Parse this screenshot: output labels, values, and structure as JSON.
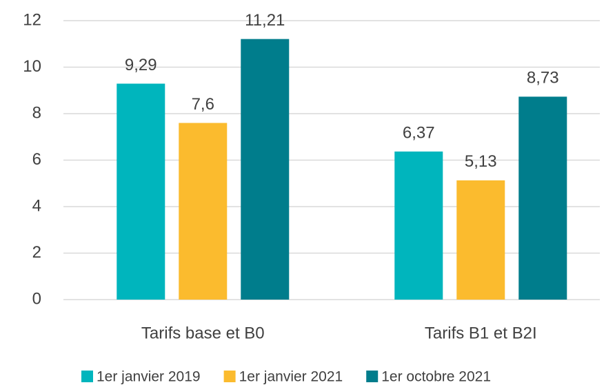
{
  "chart_data": {
    "type": "bar",
    "categories": [
      "Tarifs base et B0",
      "Tarifs B1 et B2I"
    ],
    "series": [
      {
        "name": "1er janvier 2019",
        "color": "#00b5bd",
        "values": [
          9.29,
          6.37
        ],
        "value_labels": [
          "9,29",
          "6,37"
        ]
      },
      {
        "name": "1er janvier 2021",
        "color": "#fbbb2e",
        "values": [
          7.6,
          5.13
        ],
        "value_labels": [
          "7,6",
          "5,13"
        ]
      },
      {
        "name": "1er octobre 2021",
        "color": "#007d8c",
        "values": [
          11.21,
          8.73
        ],
        "value_labels": [
          "11,21",
          "8,73"
        ]
      }
    ],
    "ylim": [
      0,
      12
    ],
    "yticks": [
      0,
      2,
      4,
      6,
      8,
      10,
      12
    ],
    "grid": true,
    "legend": "bottom"
  }
}
